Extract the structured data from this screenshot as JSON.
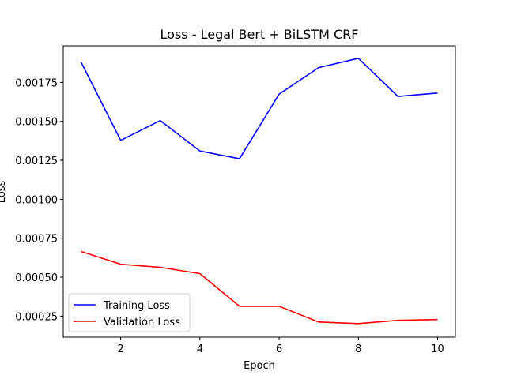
{
  "chart_data": {
    "type": "line",
    "title": "Loss - Legal Bert + BiLSTM CRF",
    "xlabel": "Epoch",
    "ylabel": "Loss",
    "x": [
      1,
      2,
      3,
      4,
      5,
      6,
      7,
      8,
      9,
      10
    ],
    "xlim": [
      0.55,
      10.45
    ],
    "ylim": [
      0.000115,
      0.001985
    ],
    "xticks": [
      2,
      4,
      6,
      8,
      10
    ],
    "xtick_labels": [
      "2",
      "4",
      "6",
      "8",
      "10"
    ],
    "yticks": [
      0.00025,
      0.0005,
      0.00075,
      0.001,
      0.00125,
      0.0015,
      0.00175
    ],
    "ytick_labels": [
      "0.00025",
      "0.00050",
      "0.00075",
      "0.00100",
      "0.00125",
      "0.00150",
      "0.00175"
    ],
    "grid": false,
    "legend_position": "lower-left",
    "series": [
      {
        "name": "Training Loss",
        "color": "#0000ff",
        "values": [
          0.00188,
          0.001378,
          0.001505,
          0.00131,
          0.00126,
          0.001675,
          0.001845,
          0.001905,
          0.00166,
          0.001682
        ]
      },
      {
        "name": "Validation Loss",
        "color": "#ff0000",
        "values": [
          0.000665,
          0.000583,
          0.000563,
          0.000523,
          0.000313,
          0.000313,
          0.000212,
          0.000202,
          0.000223,
          0.000228
        ]
      }
    ]
  }
}
